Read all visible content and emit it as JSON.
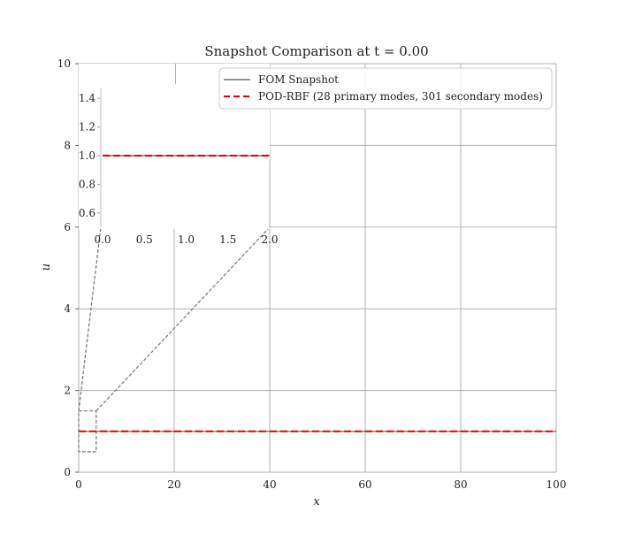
{
  "chart_data": [
    {
      "type": "line",
      "title": "Snapshot Comparison at t = 0.00",
      "xlabel": "x",
      "ylabel": "u",
      "xlim": [
        0,
        100
      ],
      "ylim": [
        0,
        10
      ],
      "x_ticks": [
        "0",
        "20",
        "40",
        "60",
        "80",
        "100"
      ],
      "y_ticks": [
        "0",
        "2",
        "4",
        "6",
        "8",
        "10"
      ],
      "grid": true,
      "legend_position": "top-right",
      "series": [
        {
          "name": "FOM Snapshot",
          "color": "#555555",
          "x": [
            0,
            100
          ],
          "y": [
            1.0,
            1.0
          ]
        },
        {
          "name": "POD-RBF (28 primary modes, 301 secondary modes)",
          "color": "#e00000",
          "style": "dashed",
          "x": [
            0,
            100
          ],
          "y": [
            1.0,
            1.0
          ]
        }
      ]
    },
    {
      "type": "line",
      "role": "inset zoom",
      "xlim": [
        0,
        2
      ],
      "ylim": [
        0.5,
        1.5
      ],
      "x_ticks": [
        "0.0",
        "0.5",
        "1.0",
        "1.5",
        "2.0"
      ],
      "y_ticks": [
        "0.6",
        "0.8",
        "1.0",
        "1.2",
        "1.4"
      ],
      "series": [
        {
          "color": "#555555",
          "x": [
            0,
            2
          ],
          "y": [
            1.0,
            1.0
          ]
        },
        {
          "color": "#e00000",
          "style": "dashed",
          "x": [
            0,
            2
          ],
          "y": [
            1.0,
            1.0
          ]
        }
      ]
    }
  ]
}
